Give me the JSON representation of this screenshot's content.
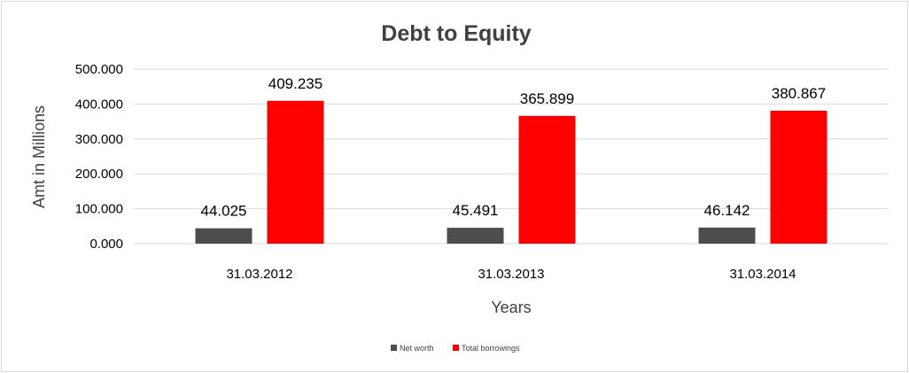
{
  "chart_data": {
    "type": "bar",
    "title": "Debt to Equity",
    "xlabel": "Years",
    "ylabel": "Amt in Millions",
    "categories": [
      "31.03.2012",
      "31.03.2013",
      "31.03.2014"
    ],
    "series": [
      {
        "name": "Net worth",
        "values": [
          44.025,
          45.491,
          46.142
        ],
        "color": "#4d4d4d"
      },
      {
        "name": "Total borrowings",
        "values": [
          409.235,
          365.899,
          380.867
        ],
        "color": "#ff0000"
      }
    ],
    "ylim": [
      0,
      500
    ],
    "yticks": [
      "0.000",
      "100.000",
      "200.000",
      "300.000",
      "400.000",
      "500.000"
    ],
    "data_labels": [
      [
        "44.025",
        "45.491",
        "46.142"
      ],
      [
        "409.235",
        "365.899",
        "380.867"
      ]
    ],
    "grid": true,
    "legend": "bottom"
  }
}
